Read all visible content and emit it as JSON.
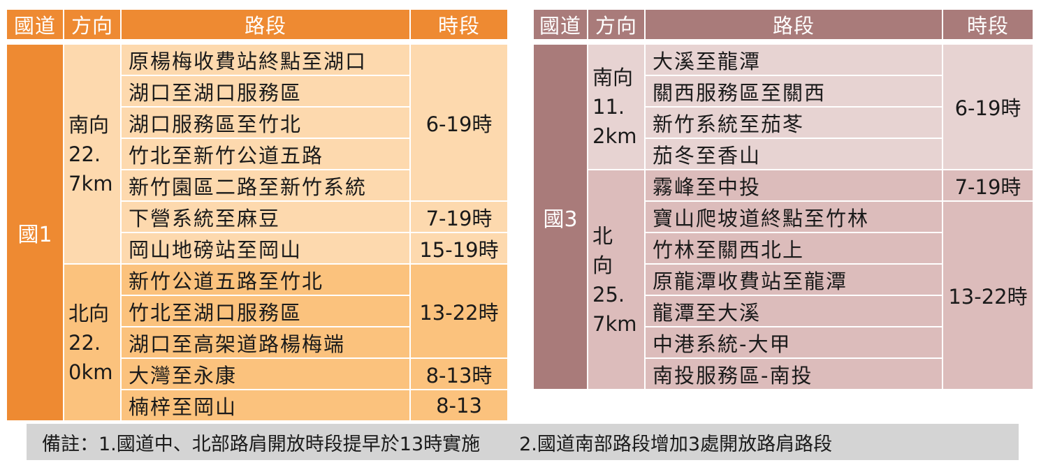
{
  "headers": {
    "highway": "國道",
    "direction": "方向",
    "segment": "路段",
    "time": "時段"
  },
  "table1": {
    "highway": "國1",
    "south": {
      "direction_lines": [
        "南向",
        "22.",
        "7km"
      ],
      "rows": [
        "原楊梅收費站終點至湖口",
        "湖口至湖口服務區",
        "湖口服務區至竹北",
        "竹北至新竹公道五路",
        "新竹園區二路至新竹系統",
        "下營系統至麻豆",
        "岡山地磅站至岡山"
      ],
      "times": [
        "6-19時",
        "7-19時",
        "15-19時"
      ]
    },
    "north": {
      "direction_lines": [
        "北向",
        "22.",
        "0km"
      ],
      "rows": [
        "新竹公道五路至竹北",
        "竹北至湖口服務區",
        "湖口至高架道路楊梅端",
        "大灣至永康",
        "楠梓至岡山"
      ],
      "times": [
        "13-22時",
        "8-13時",
        "8-13"
      ]
    }
  },
  "table3": {
    "highway": "國3",
    "south": {
      "direction_lines": [
        "南向",
        "11.",
        "2km"
      ],
      "rows": [
        "大溪至龍潭",
        "關西服務區至關西",
        "新竹系統至茄苳",
        "茄冬至香山"
      ],
      "times": [
        "6-19時"
      ]
    },
    "north": {
      "direction_lines": [
        "北",
        "向",
        "25.",
        "7km"
      ],
      "rows": [
        "霧峰至中投",
        "寶山爬坡道終點至竹林",
        "竹林至關西北上",
        "原龍潭收費站至龍潭",
        "龍潭至大溪",
        "中港系統-大甲",
        "南投服務區-南投"
      ],
      "times": [
        "7-19時",
        "13-22時"
      ]
    }
  },
  "note": {
    "part1": "備註：1.國道中、北部路肩開放時段提早於13時實施",
    "part2": "2.國道南部路段增加3處開放路肩路段"
  },
  "colors": {
    "t1_header": "#ee8a32",
    "t1_south": "#fdd9ae",
    "t1_north": "#fbc27d",
    "t3_header": "#a97b7a",
    "t3_south": "#e7d3d2",
    "t3_north": "#dcbcbb",
    "note_bg": "#d4d4d4"
  }
}
